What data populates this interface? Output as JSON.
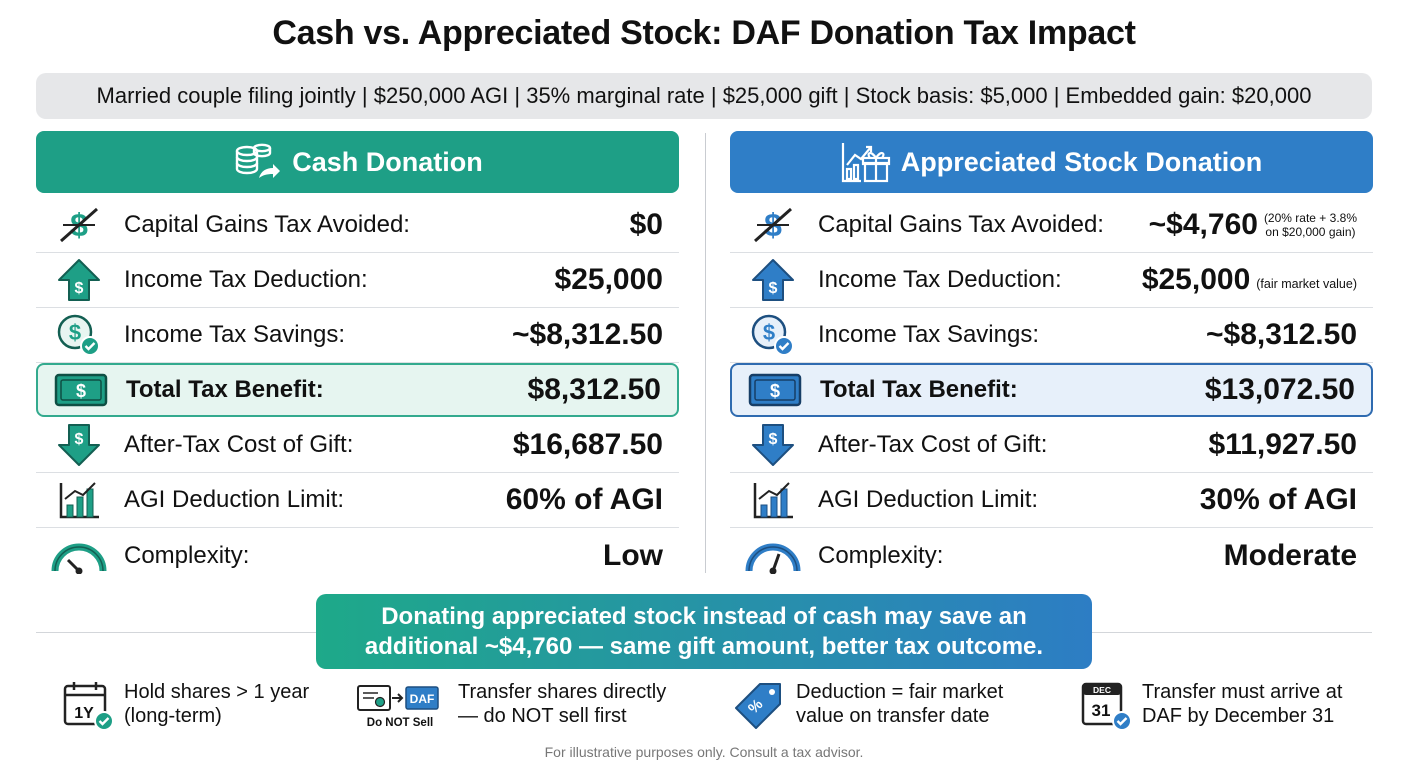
{
  "title": "Cash vs. Appreciated Stock: DAF Donation Tax Impact",
  "scenario": "Married couple filing jointly | $250,000 AGI | 35% marginal rate | $25,000 gift | Stock basis: $5,000 | Embedded gain: $20,000",
  "columns": {
    "cash": {
      "header": "Cash Donation",
      "accent_color": "#1e9f86",
      "rows": [
        {
          "label": "Capital Gains Tax Avoided:",
          "value": "$0",
          "icon": "no-dollar-icon"
        },
        {
          "label": "Income Tax Deduction:",
          "value": "$25,000",
          "icon": "arrow-up-dollar-icon"
        },
        {
          "label": "Income Tax Savings:",
          "value": "~$8,312.50",
          "icon": "dollar-check-icon"
        },
        {
          "label": "Total Tax Benefit:",
          "value": "$8,312.50",
          "icon": "banknote-icon"
        },
        {
          "label": "After-Tax Cost of Gift:",
          "value": "$16,687.50",
          "icon": "arrow-down-dollar-icon"
        },
        {
          "label": "AGI Deduction Limit:",
          "value": "60% of AGI",
          "icon": "bar-chart-icon"
        },
        {
          "label": "Complexity:",
          "value": "Low",
          "icon": "gauge-icon"
        }
      ]
    },
    "stock": {
      "header": "Appreciated Stock Donation",
      "accent_color": "#2f7ec7",
      "rows": [
        {
          "label": "Capital Gains Tax Avoided:",
          "value": "~$4,760",
          "note_line1": "(20% rate + 3.8%",
          "note_line2": "on $20,000 gain)",
          "icon": "no-dollar-icon"
        },
        {
          "label": "Income Tax Deduction:",
          "value": "$25,000",
          "note": "(fair market value)",
          "icon": "arrow-up-dollar-icon"
        },
        {
          "label": "Income Tax Savings:",
          "value": "~$8,312.50",
          "icon": "dollar-check-icon"
        },
        {
          "label": "Total Tax Benefit:",
          "value": "$13,072.50",
          "icon": "banknote-icon"
        },
        {
          "label": "After-Tax Cost of Gift:",
          "value": "$11,927.50",
          "icon": "arrow-down-dollar-icon"
        },
        {
          "label": "AGI Deduction Limit:",
          "value": "30% of AGI",
          "icon": "bar-chart-icon"
        },
        {
          "label": "Complexity:",
          "value": "Moderate",
          "icon": "gauge-icon"
        }
      ]
    }
  },
  "banner": {
    "line1": "Donating appreciated stock instead of cash may save an",
    "line2": "additional ~$4,760 — same gift amount, better tax outcome."
  },
  "tips": [
    {
      "text": "Hold shares > 1 year\n(long-term)",
      "icon": "calendar-1y-icon",
      "icon_label": "1Y"
    },
    {
      "text": "Transfer shares directly\n— do NOT sell first",
      "icon": "certificate-to-daf-icon",
      "icon_label_daf": "DAF",
      "icon_label_sell": "Do NOT Sell"
    },
    {
      "text": "Deduction = fair market\nvalue on transfer date",
      "icon": "price-tag-icon",
      "icon_label": "%"
    },
    {
      "text": "Transfer must arrive at\nDAF by December 31",
      "icon": "calendar-dec31-icon",
      "icon_label_month": "DEC",
      "icon_label_day": "31"
    }
  ],
  "footer": "For illustrative purposes only. Consult a tax advisor."
}
